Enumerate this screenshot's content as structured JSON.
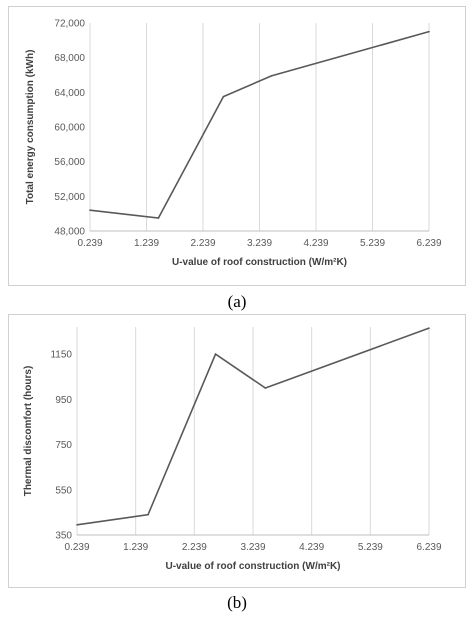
{
  "charts": {
    "a": {
      "caption": "(a)",
      "chart_data": {
        "type": "line",
        "xlabel": "U-value of roof construction (W/m²K)",
        "ylabel": "Total energy consumption (kWh)",
        "x_ticks": [
          "0.239",
          "1.239",
          "2.239",
          "3.239",
          "4.239",
          "5.239",
          "6.239"
        ],
        "y_ticks": [
          "48,000",
          "52,000",
          "56,000",
          "60,000",
          "64,000",
          "68,000",
          "72,000"
        ],
        "xlim": [
          0.239,
          6.239
        ],
        "ylim": [
          48000,
          72000
        ],
        "grid": "vertical",
        "series": [
          {
            "x": [
              0.239,
              1.45,
              2.6,
              3.45,
              6.239
            ],
            "y": [
              50400,
              49500,
              63500,
              65900,
              71000
            ]
          }
        ],
        "line_color": "#595959"
      }
    },
    "b": {
      "caption": "(b)",
      "chart_data": {
        "type": "line",
        "xlabel": "U-value of roof construction (W/m²K)",
        "ylabel": "Thermal discomfort (hours)",
        "x_ticks": [
          "0.239",
          "1.239",
          "2.239",
          "3.239",
          "4.239",
          "5.239",
          "6.239"
        ],
        "y_ticks": [
          "350",
          "550",
          "750",
          "950",
          "1150"
        ],
        "xlim": [
          0.239,
          6.239
        ],
        "ylim": [
          350,
          1270
        ],
        "grid": "vertical",
        "series": [
          {
            "x": [
              0.239,
              1.45,
              2.6,
              3.45,
              6.239
            ],
            "y": [
              395,
              440,
              1150,
              1000,
              1265
            ]
          }
        ],
        "line_color": "#595959"
      }
    }
  }
}
